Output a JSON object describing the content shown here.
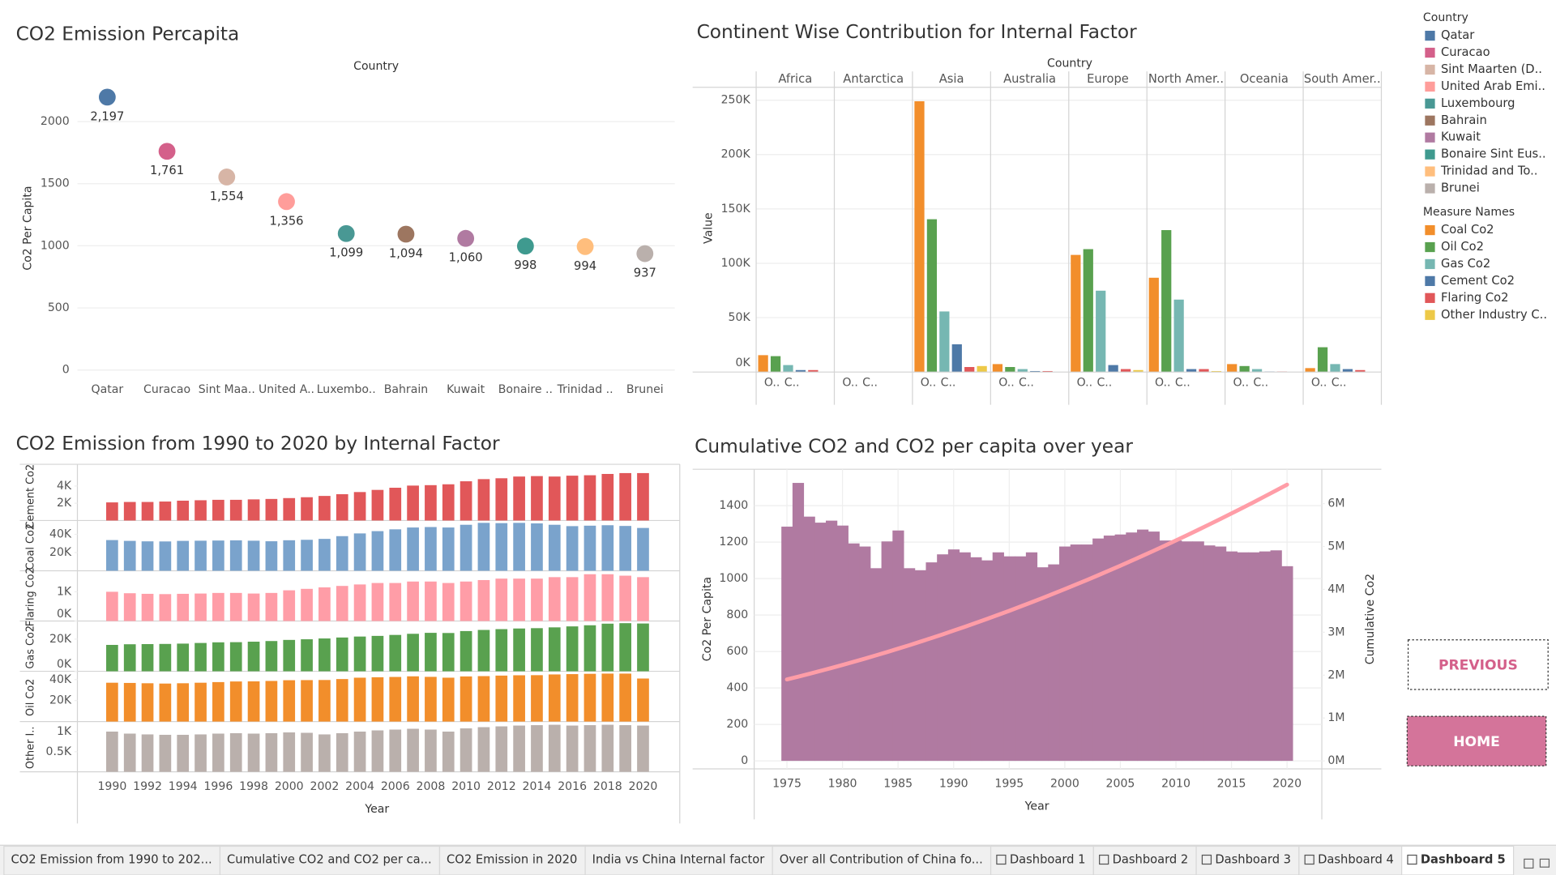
{
  "chart_data": [
    {
      "type": "dot",
      "title": "CO2 Emission Percapita",
      "x_header": "Country",
      "ylabel": "Co2 Per Capita",
      "categories": [
        "Qatar",
        "Curacao",
        "Sint Maa..",
        "United A..",
        "Luxembo..",
        "Bahrain",
        "Kuwait",
        "Bonaire ..",
        "Trinidad ..",
        "Brunei"
      ],
      "values": [
        2197,
        1761,
        1554,
        1356,
        1099,
        1094,
        1060,
        998,
        994,
        937
      ],
      "value_labels": [
        "2,197",
        "1,761",
        "1,554",
        "1,356",
        "1,099",
        "1,094",
        "1,060",
        "998",
        "994",
        "937"
      ],
      "colors": [
        "#4e79a7",
        "#d4608a",
        "#d7b5a6",
        "#ff9d9a",
        "#499894",
        "#9d7660",
        "#b07aa1",
        "#3f9a8f",
        "#ffbe7d",
        "#bab0ac"
      ],
      "ylim": [
        0,
        2300
      ],
      "yticks": [
        0,
        500,
        1000,
        1500,
        2000
      ],
      "grid": true,
      "legend": {
        "title": "Country",
        "labels": [
          "Qatar",
          "Curacao",
          "Sint Maarten (D..",
          "United Arab Emi..",
          "Luxembourg",
          "Bahrain",
          "Kuwait",
          "Bonaire Sint Eus..",
          "Trinidad and To..",
          "Brunei"
        ]
      }
    },
    {
      "type": "grouped_bar",
      "title": "Continent Wise Contribution for Internal Factor",
      "x_header": "Country",
      "ylabel": "Value",
      "categories": [
        "Africa",
        "Antarctica",
        "Asia",
        "Australia",
        "Europe",
        "North Amer..",
        "Oceania",
        "South Amer.."
      ],
      "axis_labels": [
        "O..",
        "C.."
      ],
      "legend_title": "Measure Names",
      "series": [
        {
          "name": "Coal Co2",
          "color": "#f28e2b",
          "values": [
            15500,
            0,
            249000,
            7300,
            107700,
            86700,
            7300,
            3600
          ]
        },
        {
          "name": "Oil Co2",
          "color": "#59a14f",
          "values": [
            14600,
            0,
            140500,
            4600,
            113000,
            130500,
            5500,
            22800
          ]
        },
        {
          "name": "Gas Co2",
          "color": "#76b7b2",
          "values": [
            6400,
            0,
            55700,
            2700,
            74800,
            66600,
            2700,
            7300
          ]
        },
        {
          "name": "Cement Co2",
          "color": "#4e79a7",
          "values": [
            1800,
            0,
            25500,
            900,
            6400,
            2700,
            500,
            2700
          ]
        },
        {
          "name": "Flaring Co2",
          "color": "#e15759",
          "values": [
            1800,
            0,
            4600,
            900,
            2700,
            2700,
            500,
            1800
          ]
        },
        {
          "name": "Other Industry C..",
          "color": "#edc948",
          "values": [
            0,
            0,
            5500,
            0,
            1800,
            900,
            0,
            0
          ]
        }
      ],
      "ylim": [
        0,
        260000
      ],
      "yticks": [
        {
          "value": 0,
          "label": "0K"
        },
        {
          "value": 50000,
          "label": "50K"
        },
        {
          "value": 100000,
          "label": "100K"
        },
        {
          "value": 150000,
          "label": "150K"
        },
        {
          "value": 200000,
          "label": "200K"
        },
        {
          "value": 250000,
          "label": "250K"
        }
      ],
      "grid": true
    },
    {
      "type": "bar_panels",
      "title": "CO2 Emission from 1990 to 2020 by Internal Factor",
      "xlabel": "Year",
      "x": [
        1990,
        1991,
        1992,
        1993,
        1994,
        1995,
        1996,
        1997,
        1998,
        1999,
        2000,
        2001,
        2002,
        2003,
        2004,
        2005,
        2006,
        2007,
        2008,
        2009,
        2010,
        2011,
        2012,
        2013,
        2014,
        2015,
        2016,
        2017,
        2018,
        2019,
        2020
      ],
      "xticks": [
        1990,
        1992,
        1994,
        1996,
        1998,
        2000,
        2002,
        2004,
        2006,
        2008,
        2010,
        2012,
        2014,
        2016,
        2018,
        2020
      ],
      "series": [
        {
          "name": "Cement Co2",
          "color": "#e15759",
          "ylim": [
            0,
            5600
          ],
          "yticks": [
            {
              "value": 2000,
              "label": "2K"
            },
            {
              "value": 4000,
              "label": "4K"
            }
          ],
          "values": [
            2100,
            2150,
            2150,
            2200,
            2300,
            2350,
            2400,
            2400,
            2450,
            2500,
            2600,
            2700,
            2850,
            3050,
            3300,
            3550,
            3800,
            4050,
            4100,
            4200,
            4550,
            4800,
            4900,
            5100,
            5150,
            5100,
            5200,
            5250,
            5400,
            5500,
            5500
          ]
        },
        {
          "name": "Coal Co2",
          "color": "#7aa3cc",
          "ylim": [
            0,
            53000
          ],
          "yticks": [
            {
              "value": 20000,
              "label": "20K"
            },
            {
              "value": 40000,
              "label": "40K"
            }
          ],
          "values": [
            33700,
            32800,
            32300,
            32200,
            32800,
            33000,
            33200,
            33400,
            33000,
            32400,
            33500,
            34000,
            35000,
            38000,
            41000,
            43500,
            45500,
            47500,
            48000,
            47500,
            50500,
            52600,
            52300,
            52600,
            52000,
            50500,
            49000,
            49500,
            50000,
            49200,
            47000
          ]
        },
        {
          "name": "Flaring Co2",
          "color": "#ff9da7",
          "ylim": [
            0,
            1650
          ],
          "yticks": [
            {
              "value": 0,
              "label": "0K"
            },
            {
              "value": 1000,
              "label": "1K"
            }
          ],
          "values": [
            1000,
            950,
            930,
            920,
            930,
            940,
            960,
            960,
            940,
            960,
            1050,
            1100,
            1150,
            1200,
            1250,
            1300,
            1300,
            1350,
            1350,
            1300,
            1350,
            1400,
            1450,
            1450,
            1450,
            1500,
            1500,
            1600,
            1600,
            1550,
            1500
          ]
        },
        {
          "name": "Gas Co2",
          "color": "#59a14f",
          "ylim": [
            0,
            30000
          ],
          "yticks": [
            {
              "value": 0,
              "label": "0K"
            },
            {
              "value": 20000,
              "label": "20K"
            }
          ],
          "values": [
            16400,
            16800,
            16900,
            17000,
            17200,
            17600,
            18000,
            18100,
            18400,
            18800,
            19500,
            19900,
            20400,
            21000,
            21600,
            22000,
            22600,
            23300,
            23900,
            23800,
            25000,
            25700,
            26200,
            26600,
            26800,
            27300,
            27900,
            28600,
            29600,
            29900,
            29700
          ]
        },
        {
          "name": "Oil Co2",
          "color": "#f28e2b",
          "ylim": [
            0,
            46000
          ],
          "yticks": [
            {
              "value": 20000,
              "label": "20K"
            },
            {
              "value": 40000,
              "label": "40K"
            }
          ],
          "values": [
            37000,
            36800,
            36500,
            36200,
            36500,
            37000,
            37600,
            38200,
            38300,
            38700,
            39400,
            39500,
            39600,
            40500,
            41800,
            42200,
            42500,
            43100,
            42600,
            41800,
            43000,
            43300,
            43800,
            44100,
            44200,
            44900,
            45200,
            45500,
            45700,
            45700,
            41000
          ]
        },
        {
          "name": "Other I..",
          "color": "#bab0ac",
          "ylim": [
            0,
            1200
          ],
          "yticks": [
            {
              "value": 500,
              "label": "0.5K"
            },
            {
              "value": 1000,
              "label": "1K"
            }
          ],
          "values": [
            1000,
            950,
            930,
            920,
            920,
            930,
            950,
            960,
            950,
            960,
            980,
            970,
            930,
            960,
            1000,
            1030,
            1050,
            1070,
            1050,
            1000,
            1080,
            1110,
            1130,
            1150,
            1160,
            1170,
            1150,
            1160,
            1170,
            1160,
            1150
          ]
        }
      ]
    },
    {
      "type": "combo",
      "title": "Cumulative CO2 and CO2 per capita over year",
      "xlabel": "Year",
      "ylabel": "Co2 Per Capita",
      "y2label": "Cumulative Co2",
      "x": [
        1975,
        1976,
        1977,
        1978,
        1979,
        1980,
        1981,
        1982,
        1983,
        1984,
        1985,
        1986,
        1987,
        1988,
        1989,
        1990,
        1991,
        1992,
        1993,
        1994,
        1995,
        1996,
        1997,
        1998,
        1999,
        2000,
        2001,
        2002,
        2003,
        2004,
        2005,
        2006,
        2007,
        2008,
        2009,
        2010,
        2011,
        2012,
        2013,
        2014,
        2015,
        2016,
        2017,
        2018,
        2019,
        2020
      ],
      "xticks": [
        1975,
        1980,
        1985,
        1990,
        1995,
        2000,
        2005,
        2010,
        2015,
        2020
      ],
      "series": [
        {
          "type": "area",
          "color": "#b07aa1",
          "values": [
            1285,
            1525,
            1340,
            1307,
            1318,
            1291,
            1193,
            1176,
            1057,
            1204,
            1264,
            1057,
            1046,
            1089,
            1133,
            1160,
            1144,
            1117,
            1100,
            1144,
            1122,
            1122,
            1144,
            1062,
            1078,
            1176,
            1187,
            1187,
            1220,
            1236,
            1242,
            1253,
            1269,
            1258,
            1209,
            1209,
            1204,
            1204,
            1182,
            1176,
            1149,
            1144,
            1144,
            1149,
            1155,
            1068
          ]
        },
        {
          "type": "line",
          "color": "#ff9da7",
          "axis": "y2",
          "values": [
            1900000,
            1964000,
            2030000,
            2097000,
            2167000,
            2238000,
            2310000,
            2384000,
            2460000,
            2537000,
            2617000,
            2697000,
            2780000,
            2864000,
            2950000,
            3038000,
            3127000,
            3218000,
            3310000,
            3405000,
            3500000,
            3598000,
            3697000,
            3798000,
            3901000,
            4005000,
            4111000,
            4219000,
            4328000,
            4439000,
            4551000,
            4666000,
            4782000,
            4899000,
            5019000,
            5140000,
            5262000,
            5387000,
            5513000,
            5640000,
            5770000,
            5901000,
            6033000,
            6168000,
            6304000,
            6441000
          ]
        }
      ],
      "ylim": [
        -44,
        1600
      ],
      "yticks": [
        0,
        200,
        400,
        600,
        800,
        1000,
        1200,
        1400
      ],
      "y2lim": [
        -185000,
        6800000
      ],
      "y2ticks": [
        {
          "value": 0,
          "label": "0M"
        },
        {
          "value": 1000000,
          "label": "1M"
        },
        {
          "value": 2000000,
          "label": "2M"
        },
        {
          "value": 3000000,
          "label": "3M"
        },
        {
          "value": 4000000,
          "label": "4M"
        },
        {
          "value": 5000000,
          "label": "5M"
        },
        {
          "value": 6000000,
          "label": "6M"
        }
      ],
      "grid": true
    }
  ],
  "buttons": [
    "PREVIOUS",
    "HOME"
  ],
  "tabs": [
    "CO2 Emission from 1990 to 202...",
    "Cumulative CO2 and CO2 per ca...",
    "CO2 Emission in 2020",
    "India vs China Internal factor",
    "Over all Contribution of China fo...",
    "Dashboard 1",
    "Dashboard 2",
    "Dashboard 3",
    "Dashboard 4",
    "Dashboard 5"
  ],
  "active_tab": 9
}
